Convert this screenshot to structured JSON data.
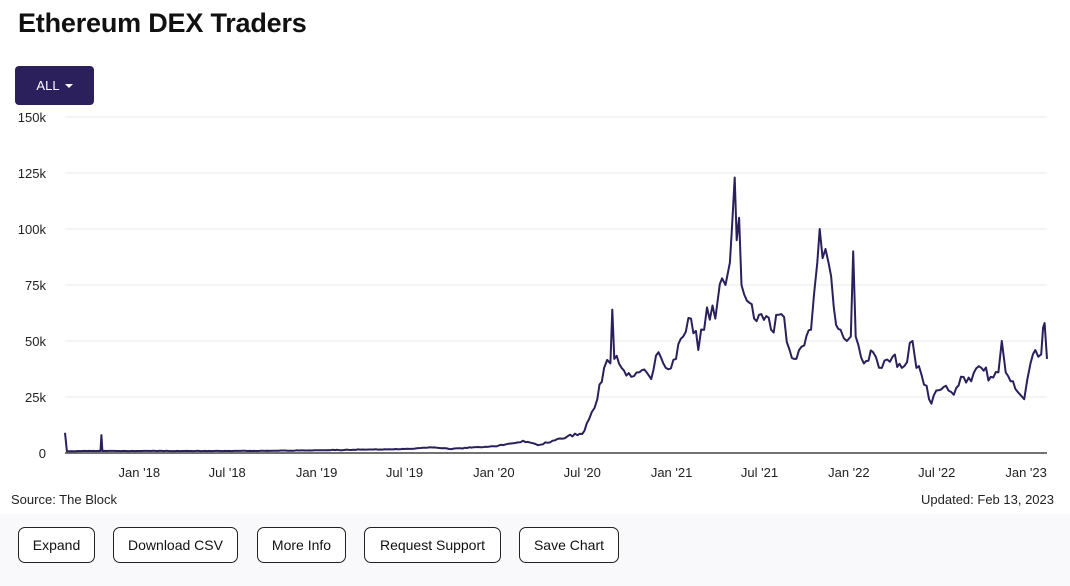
{
  "title": "Ethereum DEX Traders",
  "range_button": {
    "label": "ALL"
  },
  "footer": {
    "source": "Source: The Block",
    "updated": "Updated: Feb 13, 2023"
  },
  "actions": [
    "Expand",
    "Download CSV",
    "More Info",
    "Request Support",
    "Save Chart"
  ],
  "colors": {
    "line": "#2b1f5c",
    "button": "#2b1f5c",
    "grid": "#e9e9ee"
  },
  "chart_data": {
    "type": "line",
    "title": "",
    "xlabel": "",
    "ylabel": "",
    "ylim": [
      0,
      150000
    ],
    "y_ticks": [
      0,
      25000,
      50000,
      75000,
      100000,
      125000,
      150000
    ],
    "y_tick_labels": [
      "0",
      "25k",
      "50k",
      "75k",
      "100k",
      "125k",
      "150k"
    ],
    "x_ticks": [
      "2018-01-01",
      "2018-07-01",
      "2019-01-01",
      "2019-07-01",
      "2020-01-01",
      "2020-07-01",
      "2021-01-01",
      "2021-07-01",
      "2022-01-01",
      "2022-07-01",
      "2023-01-01"
    ],
    "x_tick_labels": [
      "Jan '18",
      "Jul '18",
      "Jan '19",
      "Jul '19",
      "Jan '20",
      "Jul '20",
      "Jan '21",
      "Jul '21",
      "Jan '22",
      "Jul '22",
      "Jan '23"
    ],
    "xlim": [
      "2017-08-01",
      "2023-02-13"
    ],
    "grid": true,
    "series": [
      {
        "values": [
          [
            "2017-08-01",
            9000
          ],
          [
            "2017-08-05",
            800
          ],
          [
            "2017-09-15",
            900
          ],
          [
            "2017-10-13",
            900
          ],
          [
            "2017-10-15",
            8000
          ],
          [
            "2017-10-17",
            900
          ],
          [
            "2018-01-01",
            900
          ],
          [
            "2018-07-01",
            900
          ],
          [
            "2018-10-01",
            1000
          ],
          [
            "2019-01-01",
            1200
          ],
          [
            "2019-04-01",
            1500
          ],
          [
            "2019-07-01",
            1800
          ],
          [
            "2019-09-01",
            2500
          ],
          [
            "2019-10-01",
            1800
          ],
          [
            "2020-01-01",
            3000
          ],
          [
            "2020-02-15",
            4500
          ],
          [
            "2020-03-01",
            5500
          ],
          [
            "2020-04-01",
            3500
          ],
          [
            "2020-05-01",
            5500
          ],
          [
            "2020-06-01",
            7500
          ],
          [
            "2020-07-01",
            8500
          ],
          [
            "2020-07-15",
            15000
          ],
          [
            "2020-08-01",
            24000
          ],
          [
            "2020-08-15",
            38000
          ],
          [
            "2020-08-28",
            40000
          ],
          [
            "2020-09-01",
            64000
          ],
          [
            "2020-09-05",
            42000
          ],
          [
            "2020-09-20",
            38000
          ],
          [
            "2020-10-10",
            34000
          ],
          [
            "2020-11-01",
            37000
          ],
          [
            "2020-11-20",
            33000
          ],
          [
            "2020-12-05",
            45000
          ],
          [
            "2020-12-20",
            38000
          ],
          [
            "2021-01-10",
            42000
          ],
          [
            "2021-01-25",
            52000
          ],
          [
            "2021-02-10",
            60000
          ],
          [
            "2021-02-25",
            46000
          ],
          [
            "2021-03-15",
            65000
          ],
          [
            "2021-04-01",
            60000
          ],
          [
            "2021-04-15",
            78000
          ],
          [
            "2021-04-22",
            75000
          ],
          [
            "2021-05-01",
            85000
          ],
          [
            "2021-05-11",
            123000
          ],
          [
            "2021-05-15",
            95000
          ],
          [
            "2021-05-20",
            105000
          ],
          [
            "2021-05-25",
            75000
          ],
          [
            "2021-06-05",
            68000
          ],
          [
            "2021-06-20",
            60000
          ],
          [
            "2021-07-05",
            62000
          ],
          [
            "2021-07-25",
            55000
          ],
          [
            "2021-08-15",
            62000
          ],
          [
            "2021-09-01",
            46000
          ],
          [
            "2021-09-15",
            42000
          ],
          [
            "2021-10-01",
            48000
          ],
          [
            "2021-10-15",
            55000
          ],
          [
            "2021-10-28",
            85000
          ],
          [
            "2021-11-02",
            100000
          ],
          [
            "2021-11-08",
            87000
          ],
          [
            "2021-11-20",
            85000
          ],
          [
            "2021-12-01",
            65000
          ],
          [
            "2021-12-15",
            55000
          ],
          [
            "2021-12-28",
            50000
          ],
          [
            "2022-01-05",
            52000
          ],
          [
            "2022-01-10",
            90000
          ],
          [
            "2022-01-15",
            52000
          ],
          [
            "2022-02-01",
            40000
          ],
          [
            "2022-02-20",
            45000
          ],
          [
            "2022-03-10",
            38000
          ],
          [
            "2022-04-01",
            43000
          ],
          [
            "2022-04-20",
            38000
          ],
          [
            "2022-05-12",
            50000
          ],
          [
            "2022-05-20",
            38000
          ],
          [
            "2022-06-10",
            30000
          ],
          [
            "2022-06-20",
            22000
          ],
          [
            "2022-07-05",
            28000
          ],
          [
            "2022-07-20",
            30000
          ],
          [
            "2022-08-05",
            26000
          ],
          [
            "2022-08-20",
            34000
          ],
          [
            "2022-09-10",
            32000
          ],
          [
            "2022-10-01",
            38000
          ],
          [
            "2022-10-20",
            34000
          ],
          [
            "2022-11-05",
            36000
          ],
          [
            "2022-11-12",
            50000
          ],
          [
            "2022-11-20",
            36000
          ],
          [
            "2022-12-05",
            32000
          ],
          [
            "2022-12-20",
            26000
          ],
          [
            "2022-12-28",
            24000
          ],
          [
            "2023-01-10",
            40000
          ],
          [
            "2023-01-20",
            46000
          ],
          [
            "2023-02-01",
            44000
          ],
          [
            "2023-02-05",
            56000
          ],
          [
            "2023-02-08",
            58000
          ],
          [
            "2023-02-13",
            42000
          ]
        ]
      }
    ]
  }
}
